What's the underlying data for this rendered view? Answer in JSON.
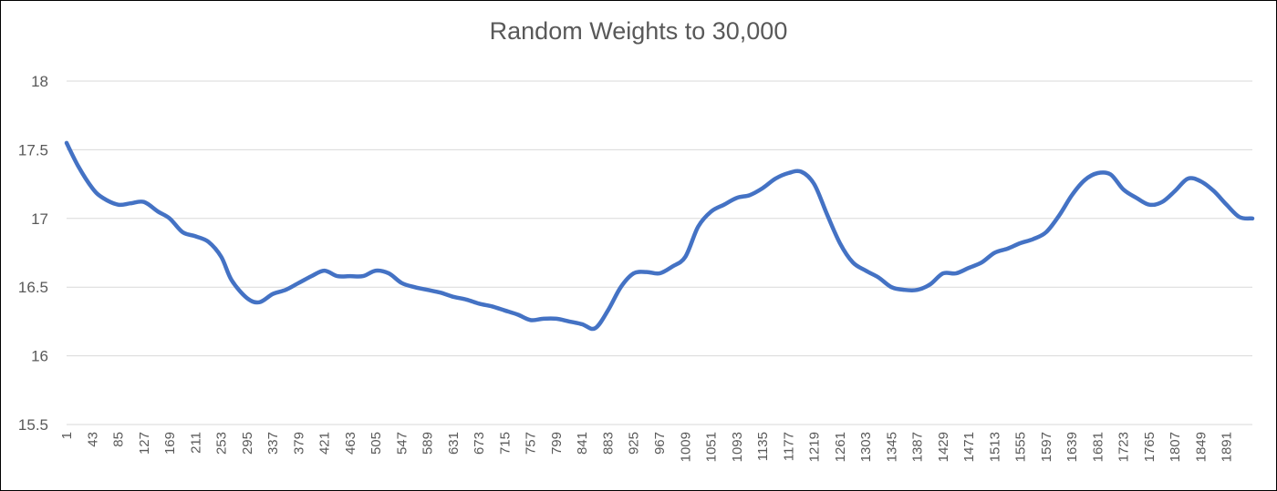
{
  "chart_data": {
    "type": "line",
    "title": "Random Weights to 30,000",
    "xlabel": "",
    "ylabel": "",
    "ylim": [
      15.5,
      18
    ],
    "yticks": [
      "15.5",
      "16",
      "16.5",
      "17",
      "17.5",
      "18"
    ],
    "x_tick_labels": [
      "1",
      "43",
      "85",
      "127",
      "169",
      "211",
      "253",
      "295",
      "337",
      "379",
      "421",
      "463",
      "505",
      "547",
      "589",
      "631",
      "673",
      "715",
      "757",
      "799",
      "841",
      "883",
      "925",
      "967",
      "1009",
      "1051",
      "1093",
      "1135",
      "1177",
      "1219",
      "1261",
      "1303",
      "1345",
      "1387",
      "1429",
      "1471",
      "1513",
      "1555",
      "1597",
      "1639",
      "1681",
      "1723",
      "1765",
      "1807",
      "1849",
      "1891"
    ],
    "xlim": [
      1,
      1933
    ],
    "grid": true,
    "legend": "none",
    "line_color": "#4472C4",
    "series": [
      {
        "x": [
          1,
          20,
          43,
          60,
          85,
          105,
          127,
          150,
          169,
          190,
          211,
          232,
          253,
          270,
          295,
          315,
          337,
          358,
          379,
          400,
          421,
          442,
          463,
          484,
          505,
          526,
          547,
          568,
          589,
          610,
          631,
          652,
          673,
          694,
          715,
          736,
          757,
          778,
          799,
          820,
          841,
          862,
          883,
          904,
          925,
          946,
          967,
          988,
          1009,
          1030,
          1051,
          1072,
          1093,
          1114,
          1135,
          1156,
          1177,
          1198,
          1219,
          1240,
          1261,
          1282,
          1303,
          1324,
          1345,
          1366,
          1387,
          1408,
          1429,
          1450,
          1471,
          1492,
          1513,
          1534,
          1555,
          1576,
          1597,
          1618,
          1639,
          1660,
          1681,
          1702,
          1723,
          1744,
          1765,
          1786,
          1807,
          1828,
          1849,
          1870,
          1891,
          1912,
          1933
        ],
        "values": [
          17.55,
          17.38,
          17.22,
          17.15,
          17.1,
          17.11,
          17.12,
          17.05,
          17.0,
          16.9,
          16.87,
          16.83,
          16.72,
          16.55,
          16.42,
          16.39,
          16.45,
          16.48,
          16.53,
          16.58,
          16.62,
          16.58,
          16.58,
          16.58,
          16.62,
          16.6,
          16.53,
          16.5,
          16.48,
          16.46,
          16.43,
          16.41,
          16.38,
          16.36,
          16.33,
          16.3,
          16.26,
          16.27,
          16.27,
          16.25,
          16.23,
          16.2,
          16.33,
          16.5,
          16.6,
          16.61,
          16.6,
          16.65,
          16.72,
          16.94,
          17.05,
          17.1,
          17.15,
          17.17,
          17.22,
          17.29,
          17.33,
          17.34,
          17.25,
          17.03,
          16.82,
          16.68,
          16.62,
          16.57,
          16.5,
          16.48,
          16.48,
          16.52,
          16.6,
          16.6,
          16.64,
          16.68,
          16.75,
          16.78,
          16.82,
          16.85,
          16.9,
          17.02,
          17.17,
          17.28,
          17.33,
          17.32,
          17.21,
          17.15,
          17.1,
          17.12,
          17.2,
          17.29,
          17.27,
          17.2,
          17.1,
          17.01,
          17.0
        ]
      }
    ]
  }
}
